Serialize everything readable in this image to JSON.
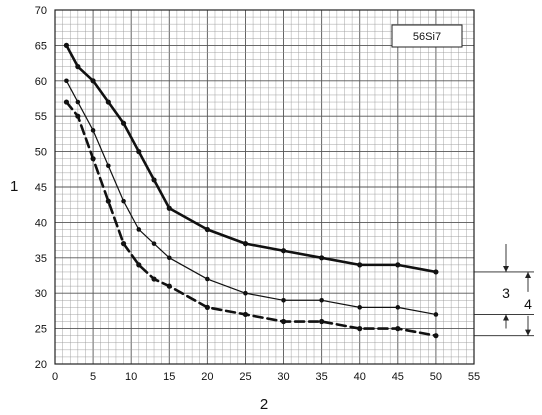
{
  "chart_data": {
    "type": "line",
    "title": "",
    "legend_box": "56Si7",
    "xlabel": "2",
    "ylabel": "1",
    "xlim": [
      0,
      55
    ],
    "ylim": [
      20,
      70
    ],
    "xticks": [
      0,
      5,
      10,
      15,
      20,
      25,
      30,
      35,
      40,
      45,
      50,
      55
    ],
    "yticks": [
      20,
      25,
      30,
      35,
      40,
      45,
      50,
      55,
      60,
      65,
      70
    ],
    "x_tick_labels": [
      "0",
      "5",
      "10",
      "15",
      "20",
      "25",
      "30",
      "35",
      "40",
      "45",
      "50",
      "55"
    ],
    "y_tick_labels": [
      "20",
      "25",
      "30",
      "35",
      "40",
      "45",
      "50",
      "55",
      "60",
      "65",
      "70"
    ],
    "grid": "fine millimeter grid with major lines every 5 units",
    "series": [
      {
        "style": "thick-solid",
        "color": "#111111",
        "x": [
          1.5,
          3,
          5,
          7,
          9,
          11,
          13,
          15,
          20,
          25,
          30,
          35,
          40,
          45,
          50
        ],
        "y": [
          65,
          62,
          60,
          57,
          54,
          50,
          46,
          42,
          39,
          37,
          36,
          35,
          34,
          34,
          33
        ]
      },
      {
        "style": "thin-solid",
        "color": "#111111",
        "x": [
          1.5,
          3,
          5,
          7,
          9,
          11,
          13,
          15,
          20,
          25,
          30,
          35,
          40,
          45,
          50
        ],
        "y": [
          60,
          57,
          53,
          48,
          43,
          39,
          37,
          35,
          32,
          30,
          29,
          29,
          28,
          28,
          27
        ]
      },
      {
        "style": "thick-dashed",
        "color": "#111111",
        "x": [
          1.5,
          3,
          5,
          7,
          9,
          11,
          13,
          15,
          20,
          25,
          30,
          35,
          40,
          45,
          50
        ],
        "y": [
          57,
          55,
          49,
          43,
          37,
          34,
          32,
          31,
          28,
          27,
          26,
          26,
          25,
          25,
          24
        ]
      }
    ],
    "annotations": [
      {
        "label": "3",
        "from": 27,
        "to": 33
      },
      {
        "label": "4",
        "from": 24,
        "to": 33
      }
    ]
  }
}
